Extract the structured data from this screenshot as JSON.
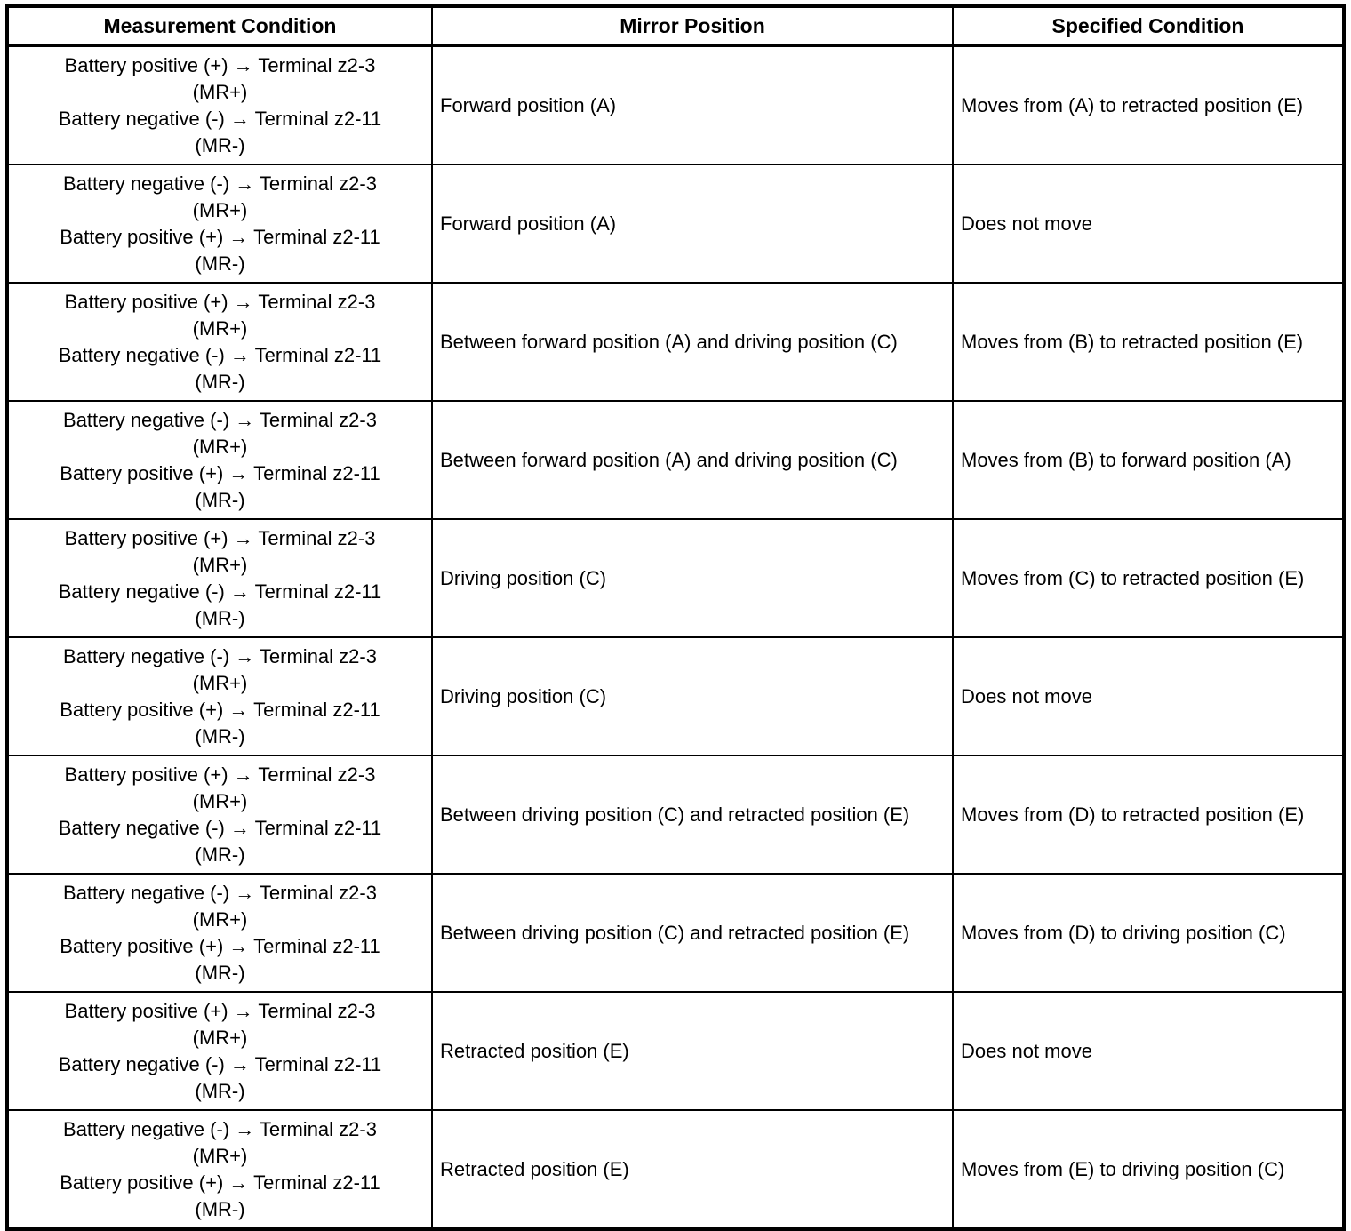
{
  "table": {
    "headers": [
      "Measurement Condition",
      "Mirror Position",
      "Specified Condition"
    ],
    "rows": [
      {
        "measurement": [
          "Battery positive (+) → Terminal z2-3",
          "(MR+)",
          "Battery negative (-) → Terminal z2-11",
          "(MR-)"
        ],
        "mirror": "Forward position (A)",
        "specified": "Moves from (A) to retracted position (E)"
      },
      {
        "measurement": [
          "Battery negative (-) → Terminal z2-3",
          "(MR+)",
          "Battery positive (+) → Terminal z2-11",
          "(MR-)"
        ],
        "mirror": "Forward position (A)",
        "specified": "Does not move"
      },
      {
        "measurement": [
          "Battery positive (+) → Terminal z2-3",
          "(MR+)",
          "Battery negative (-) → Terminal z2-11",
          "(MR-)"
        ],
        "mirror": "Between forward position (A) and driving position (C)",
        "specified": "Moves from (B) to retracted position (E)"
      },
      {
        "measurement": [
          "Battery negative (-) → Terminal z2-3",
          "(MR+)",
          "Battery positive (+) → Terminal z2-11",
          "(MR-)"
        ],
        "mirror": "Between forward position (A) and driving position (C)",
        "specified": "Moves from (B) to forward position (A)"
      },
      {
        "measurement": [
          "Battery positive (+) → Terminal z2-3",
          "(MR+)",
          "Battery negative (-) → Terminal z2-11",
          "(MR-)"
        ],
        "mirror": "Driving position (C)",
        "specified": "Moves from (C) to retracted position (E)"
      },
      {
        "measurement": [
          "Battery negative (-) → Terminal z2-3",
          "(MR+)",
          "Battery positive (+) → Terminal z2-11",
          "(MR-)"
        ],
        "mirror": "Driving position (C)",
        "specified": "Does not move"
      },
      {
        "measurement": [
          "Battery positive (+) → Terminal z2-3",
          "(MR+)",
          "Battery negative (-) → Terminal z2-11",
          "(MR-)"
        ],
        "mirror": "Between driving position (C) and retracted position (E)",
        "specified": "Moves from (D) to retracted position (E)"
      },
      {
        "measurement": [
          "Battery negative (-) → Terminal z2-3",
          "(MR+)",
          "Battery positive (+) → Terminal z2-11",
          "(MR-)"
        ],
        "mirror": "Between driving position (C) and retracted position (E)",
        "specified": "Moves from (D) to driving position (C)"
      },
      {
        "measurement": [
          "Battery positive (+) → Terminal z2-3",
          "(MR+)",
          "Battery negative (-) → Terminal z2-11",
          "(MR-)"
        ],
        "mirror": "Retracted position (E)",
        "specified": "Does not move"
      },
      {
        "measurement": [
          "Battery negative (-) → Terminal z2-3",
          "(MR+)",
          "Battery positive (+) → Terminal z2-11",
          "(MR-)"
        ],
        "mirror": "Retracted position (E)",
        "specified": "Moves from (E) to driving position (C)"
      }
    ],
    "colors": {
      "border": "#000000",
      "text": "#000000",
      "background": "#ffffff"
    }
  }
}
